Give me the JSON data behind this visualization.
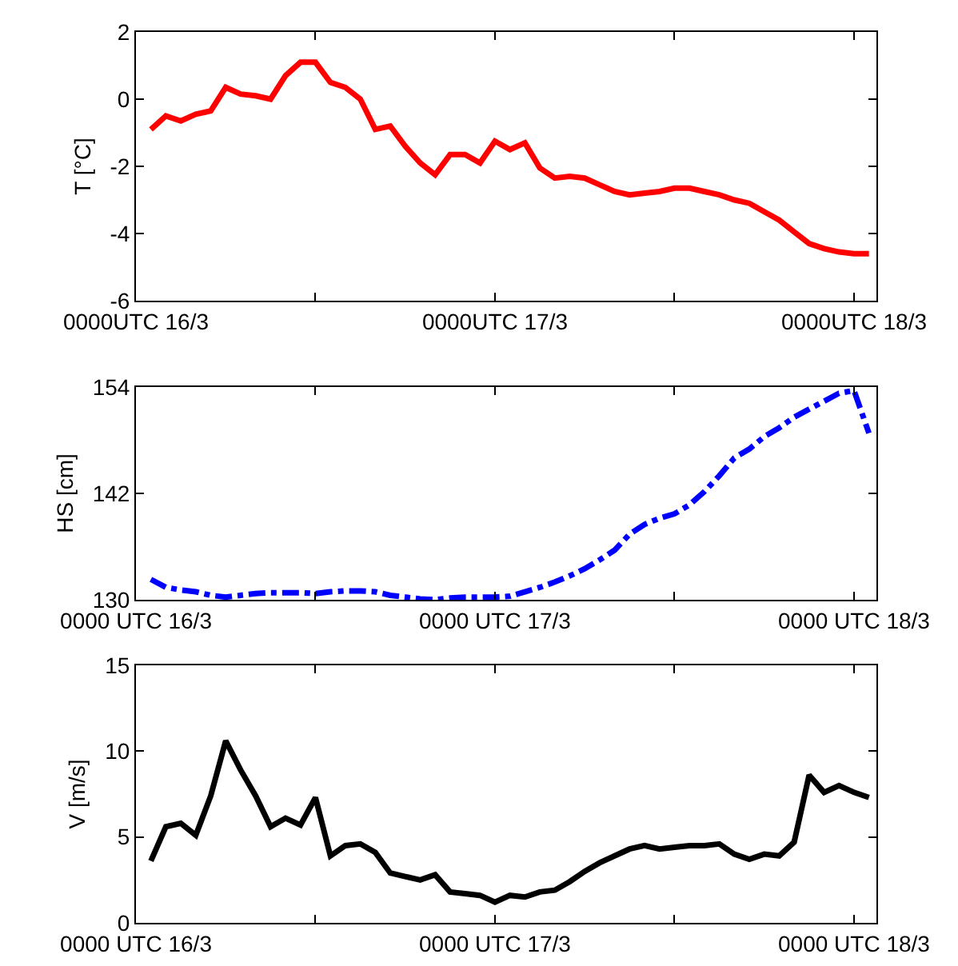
{
  "chart_data": [
    {
      "type": "line",
      "ylabel": "T [°C]",
      "x": [
        "--03-16T01:00",
        "--03-16T02:00",
        "--03-16T03:00",
        "--03-16T04:00",
        "--03-16T05:00",
        "--03-16T06:00",
        "--03-16T07:00",
        "--03-16T08:00",
        "--03-16T09:00",
        "--03-16T10:00",
        "--03-16T11:00",
        "--03-16T12:00",
        "--03-16T13:00",
        "--03-16T14:00",
        "--03-16T15:00",
        "--03-16T16:00",
        "--03-16T17:00",
        "--03-16T18:00",
        "--03-16T19:00",
        "--03-16T20:00",
        "--03-16T21:00",
        "--03-16T22:00",
        "--03-16T23:00",
        "--03-17T00:00",
        "--03-17T01:00",
        "--03-17T02:00",
        "--03-17T03:00",
        "--03-17T04:00",
        "--03-17T05:00",
        "--03-17T06:00",
        "--03-17T07:00",
        "--03-17T08:00",
        "--03-17T09:00",
        "--03-17T10:00",
        "--03-17T11:00",
        "--03-17T12:00",
        "--03-17T13:00",
        "--03-17T14:00",
        "--03-17T15:00",
        "--03-17T16:00",
        "--03-17T17:00",
        "--03-17T18:00",
        "--03-17T19:00",
        "--03-17T20:00",
        "--03-17T21:00",
        "--03-17T22:00",
        "--03-17T23:00",
        "--03-18T00:00",
        "--03-18T01:00"
      ],
      "series": [
        {
          "color": "#ff0000",
          "values": [
            -0.9,
            -0.5,
            -0.65,
            -0.45,
            -0.35,
            0.35,
            0.15,
            0.1,
            0,
            0.7,
            1.1,
            1.1,
            0.5,
            0.35,
            0,
            -0.9,
            -0.8,
            -1.4,
            -1.9,
            -2.25,
            -1.65,
            -1.65,
            -1.9,
            -1.25,
            -1.5,
            -1.3,
            -2.05,
            -2.35,
            -2.3,
            -2.35,
            -2.55,
            -2.75,
            -2.85,
            -2.8,
            -2.75,
            -2.65,
            -2.65,
            -2.75,
            -2.85,
            -3,
            -3.1,
            -3.35,
            -3.6,
            -3.95,
            -4.3,
            -4.45,
            -4.55,
            -4.6,
            -4.6
          ]
        }
      ],
      "xlim": [
        "--03-16T00:00",
        "--03-18T01:30"
      ],
      "xticks": [
        {
          "value": "--03-16T00:00",
          "label": "0000UTC 16/3"
        },
        {
          "value": "--03-16T12:00",
          "label": null
        },
        {
          "value": "--03-17T00:00",
          "label": "0000UTC 17/3"
        },
        {
          "value": "--03-17T12:00",
          "label": null
        },
        {
          "value": "--03-18T00:00",
          "label": "0000UTC 18/3"
        }
      ],
      "ylim": [
        -6,
        2
      ],
      "yticks": [
        -6,
        -4,
        -2,
        0,
        2
      ],
      "grid": false,
      "marker": "none",
      "line_style": "solid"
    },
    {
      "type": "line",
      "ylabel": "HS [cm]",
      "x": [
        "--03-16T01:00",
        "--03-16T02:00",
        "--03-16T03:00",
        "--03-16T04:00",
        "--03-16T05:00",
        "--03-16T06:00",
        "--03-16T07:00",
        "--03-16T08:00",
        "--03-16T09:00",
        "--03-16T10:00",
        "--03-16T11:00",
        "--03-16T12:00",
        "--03-16T13:00",
        "--03-16T14:00",
        "--03-16T15:00",
        "--03-16T16:00",
        "--03-16T17:00",
        "--03-16T18:00",
        "--03-16T19:00",
        "--03-16T20:00",
        "--03-16T21:00",
        "--03-16T22:00",
        "--03-16T23:00",
        "--03-17T00:00",
        "--03-17T01:00",
        "--03-17T02:00",
        "--03-17T03:00",
        "--03-17T04:00",
        "--03-17T05:00",
        "--03-17T06:00",
        "--03-17T07:00",
        "--03-17T08:00",
        "--03-17T09:00",
        "--03-17T10:00",
        "--03-17T11:00",
        "--03-17T12:00",
        "--03-17T13:00",
        "--03-17T14:00",
        "--03-17T15:00",
        "--03-17T16:00",
        "--03-17T17:00",
        "--03-17T18:00",
        "--03-17T19:00",
        "--03-17T20:00",
        "--03-17T21:00",
        "--03-17T22:00",
        "--03-17T23:00",
        "--03-18T00:00",
        "--03-18T01:00"
      ],
      "series": [
        {
          "color": "#0000ff",
          "values": [
            132.3,
            131.4,
            131.1,
            130.9,
            130.5,
            130.3,
            130.5,
            130.7,
            130.8,
            130.8,
            130.8,
            130.7,
            130.9,
            131,
            131,
            130.9,
            130.5,
            130.3,
            130.1,
            130,
            130.2,
            130.3,
            130.3,
            130.3,
            130.4,
            130.9,
            131.4,
            132,
            132.7,
            133.5,
            134.5,
            135.6,
            137.4,
            138.5,
            139.2,
            139.7,
            140.7,
            142.2,
            144,
            146,
            147,
            148.4,
            149.4,
            150.6,
            151.5,
            152.4,
            153.3,
            153.6,
            148.8
          ]
        }
      ],
      "xlim": [
        "--03-16T00:00",
        "--03-18T01:30"
      ],
      "xticks": [
        {
          "value": "--03-16T00:00",
          "label": "0000 UTC 16/3"
        },
        {
          "value": "--03-16T12:00",
          "label": null
        },
        {
          "value": "--03-17T00:00",
          "label": "0000 UTC 17/3"
        },
        {
          "value": "--03-17T12:00",
          "label": null
        },
        {
          "value": "--03-18T00:00",
          "label": "0000 UTC 18/3"
        }
      ],
      "ylim": [
        130,
        154
      ],
      "yticks": [
        130,
        142,
        154
      ],
      "grid": false,
      "marker": "none",
      "line_style": "dashdot"
    },
    {
      "type": "line",
      "ylabel": "V [m/s]",
      "x": [
        "--03-16T01:00",
        "--03-16T02:00",
        "--03-16T03:00",
        "--03-16T04:00",
        "--03-16T05:00",
        "--03-16T06:00",
        "--03-16T07:00",
        "--03-16T08:00",
        "--03-16T09:00",
        "--03-16T10:00",
        "--03-16T11:00",
        "--03-16T12:00",
        "--03-16T13:00",
        "--03-16T14:00",
        "--03-16T15:00",
        "--03-16T16:00",
        "--03-16T17:00",
        "--03-16T18:00",
        "--03-16T19:00",
        "--03-16T20:00",
        "--03-16T21:00",
        "--03-16T22:00",
        "--03-16T23:00",
        "--03-17T00:00",
        "--03-17T01:00",
        "--03-17T02:00",
        "--03-17T03:00",
        "--03-17T04:00",
        "--03-17T05:00",
        "--03-17T06:00",
        "--03-17T07:00",
        "--03-17T08:00",
        "--03-17T09:00",
        "--03-17T10:00",
        "--03-17T11:00",
        "--03-17T12:00",
        "--03-17T13:00",
        "--03-17T14:00",
        "--03-17T15:00",
        "--03-17T16:00",
        "--03-17T17:00",
        "--03-17T18:00",
        "--03-17T19:00",
        "--03-17T20:00",
        "--03-17T21:00",
        "--03-17T22:00",
        "--03-17T23:00",
        "--03-18T00:00",
        "--03-18T01:00"
      ],
      "series": [
        {
          "color": "#000000",
          "values": [
            3.6,
            5.6,
            5.8,
            5.1,
            7.4,
            10.6,
            8.9,
            7.4,
            5.6,
            6.1,
            5.7,
            7.3,
            3.9,
            4.5,
            4.6,
            4.1,
            2.9,
            2.7,
            2.5,
            2.8,
            1.8,
            1.7,
            1.6,
            1.2,
            1.6,
            1.5,
            1.8,
            1.9,
            2.4,
            3,
            3.5,
            3.9,
            4.3,
            4.5,
            4.3,
            4.4,
            4.5,
            4.5,
            4.6,
            4,
            3.7,
            4,
            3.9,
            4.7,
            8.6,
            7.6,
            8,
            7.6,
            7.3
          ]
        }
      ],
      "xlim": [
        "--03-16T00:00",
        "--03-18T01:30"
      ],
      "xticks": [
        {
          "value": "--03-16T00:00",
          "label": "0000 UTC 16/3"
        },
        {
          "value": "--03-16T12:00",
          "label": null
        },
        {
          "value": "--03-17T00:00",
          "label": "0000 UTC 17/3"
        },
        {
          "value": "--03-17T12:00",
          "label": null
        },
        {
          "value": "--03-18T00:00",
          "label": "0000 UTC 18/3"
        }
      ],
      "ylim": [
        0,
        15
      ],
      "yticks": [
        0,
        5,
        10,
        15
      ],
      "grid": false,
      "marker": "none",
      "line_style": "solid"
    }
  ]
}
